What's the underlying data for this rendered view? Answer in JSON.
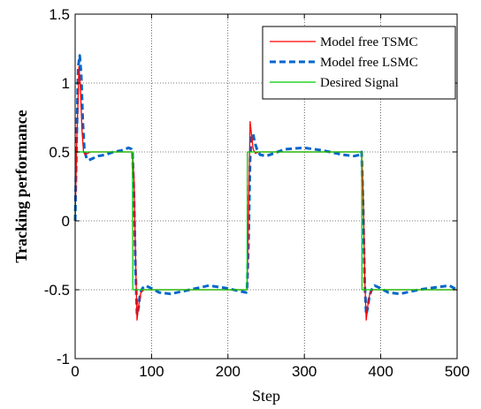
{
  "chart_data": {
    "type": "line",
    "title": "",
    "xlabel": "Step",
    "ylabel": "Tracking performance",
    "xlim": [
      0,
      500
    ],
    "ylim": [
      -1,
      1.5
    ],
    "xticks": [
      0,
      100,
      200,
      300,
      400,
      500
    ],
    "xtick_labels": [
      "0",
      "100",
      "200",
      "300",
      "400",
      "500"
    ],
    "yticks": [
      -1,
      -0.5,
      0,
      0.5,
      1,
      1.5
    ],
    "ytick_labels": [
      "-1",
      "-0.5",
      "0",
      "0.5",
      "1",
      "1.5"
    ],
    "grid": true,
    "legend_position": "top-right",
    "series": [
      {
        "name": "Model free TSMC",
        "color": "#ff0000",
        "style": "solid",
        "x": [
          0,
          2,
          5,
          7,
          9,
          11,
          13,
          16,
          20,
          30,
          40,
          50,
          60,
          70,
          74,
          75,
          77,
          79,
          81,
          83,
          86,
          90,
          100,
          120,
          150,
          180,
          200,
          220,
          224,
          225,
          227,
          229,
          231,
          233,
          236,
          240,
          250,
          275,
          300,
          325,
          350,
          370,
          374,
          375,
          377,
          379,
          381,
          383,
          386,
          390,
          400,
          420,
          450,
          480,
          500
        ],
        "y": [
          0,
          0.55,
          1.12,
          0.95,
          0.65,
          0.5,
          0.48,
          0.49,
          0.5,
          0.5,
          0.5,
          0.5,
          0.5,
          0.5,
          0.5,
          0.5,
          0.3,
          -0.25,
          -0.72,
          -0.62,
          -0.52,
          -0.5,
          -0.5,
          -0.5,
          -0.5,
          -0.5,
          -0.5,
          -0.5,
          -0.5,
          -0.5,
          0.05,
          0.72,
          0.62,
          0.52,
          0.49,
          0.5,
          0.5,
          0.5,
          0.5,
          0.5,
          0.5,
          0.5,
          0.5,
          0.5,
          0.2,
          -0.4,
          -0.72,
          -0.62,
          -0.52,
          -0.5,
          -0.5,
          -0.5,
          -0.5,
          -0.5,
          -0.5
        ]
      },
      {
        "name": "Model free LSMC",
        "color": "#0066cc",
        "style": "dashed",
        "x": [
          0,
          2,
          4,
          6,
          8,
          10,
          12,
          15,
          18,
          22,
          30,
          40,
          50,
          60,
          70,
          74,
          75,
          77,
          79,
          81,
          83,
          85,
          88,
          92,
          100,
          110,
          125,
          150,
          175,
          200,
          215,
          224,
          225,
          227,
          229,
          231,
          233,
          235,
          238,
          242,
          250,
          260,
          275,
          300,
          325,
          350,
          365,
          374,
          375,
          377,
          379,
          381,
          383,
          385,
          388,
          392,
          400,
          410,
          425,
          450,
          475,
          490,
          500
        ],
        "y": [
          0,
          0.6,
          1.12,
          1.2,
          1.05,
          0.72,
          0.52,
          0.45,
          0.44,
          0.45,
          0.47,
          0.48,
          0.5,
          0.51,
          0.53,
          0.52,
          0.5,
          0.2,
          -0.35,
          -0.68,
          -0.63,
          -0.53,
          -0.49,
          -0.47,
          -0.49,
          -0.52,
          -0.53,
          -0.5,
          -0.47,
          -0.49,
          -0.51,
          -0.52,
          -0.5,
          -0.15,
          0.45,
          0.62,
          0.63,
          0.57,
          0.52,
          0.48,
          0.47,
          0.49,
          0.52,
          0.53,
          0.51,
          0.48,
          0.47,
          0.48,
          0.5,
          0.1,
          -0.45,
          -0.68,
          -0.63,
          -0.55,
          -0.5,
          -0.47,
          -0.49,
          -0.52,
          -0.53,
          -0.5,
          -0.48,
          -0.47,
          -0.5
        ]
      },
      {
        "name": "Desired Signal",
        "color": "#00cc00",
        "style": "solid",
        "x": [
          0,
          0.5,
          75,
          75.5,
          225,
          225.5,
          375,
          375.5,
          500
        ],
        "y": [
          0,
          0.5,
          0.5,
          -0.5,
          -0.5,
          0.5,
          0.5,
          -0.5,
          -0.5
        ]
      }
    ]
  }
}
